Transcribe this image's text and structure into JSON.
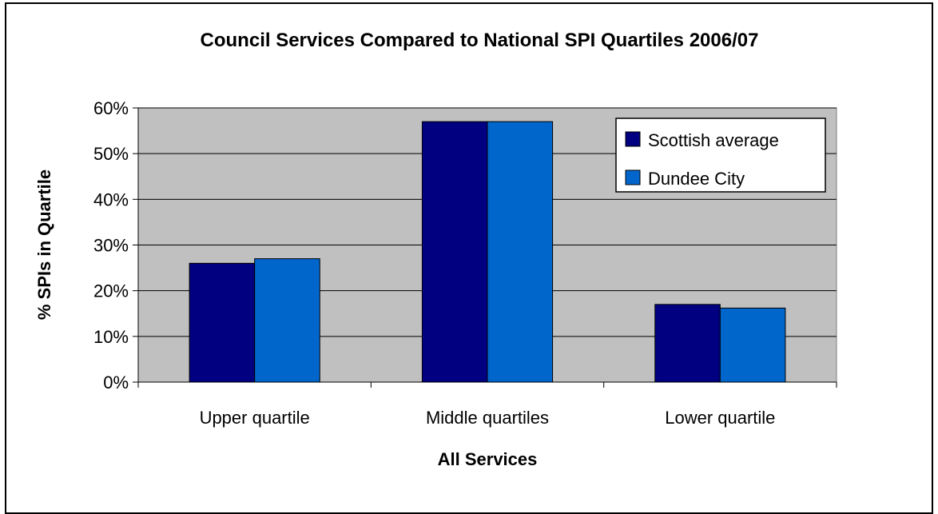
{
  "chart_data": {
    "type": "bar",
    "title": "Council Services Compared to National SPI Quartiles 2006/07",
    "xlabel": "All Services",
    "ylabel": "% SPIs in Quartile",
    "categories": [
      "Upper quartile",
      "Middle quartiles",
      "Lower quartile"
    ],
    "series": [
      {
        "name": "Scottish average",
        "values": [
          26,
          57,
          17
        ],
        "color": "#000080"
      },
      {
        "name": "Dundee City",
        "values": [
          27,
          57,
          16.2
        ],
        "color": "#0066CC"
      }
    ],
    "ylim": [
      0,
      60
    ],
    "yticks": [
      0,
      10,
      20,
      30,
      40,
      50,
      60
    ],
    "ytick_labels": [
      "0%",
      "10%",
      "20%",
      "30%",
      "40%",
      "50%",
      "60%"
    ],
    "grid": true,
    "plot_background": "#C0C0C0",
    "legend_position": "top-right"
  }
}
